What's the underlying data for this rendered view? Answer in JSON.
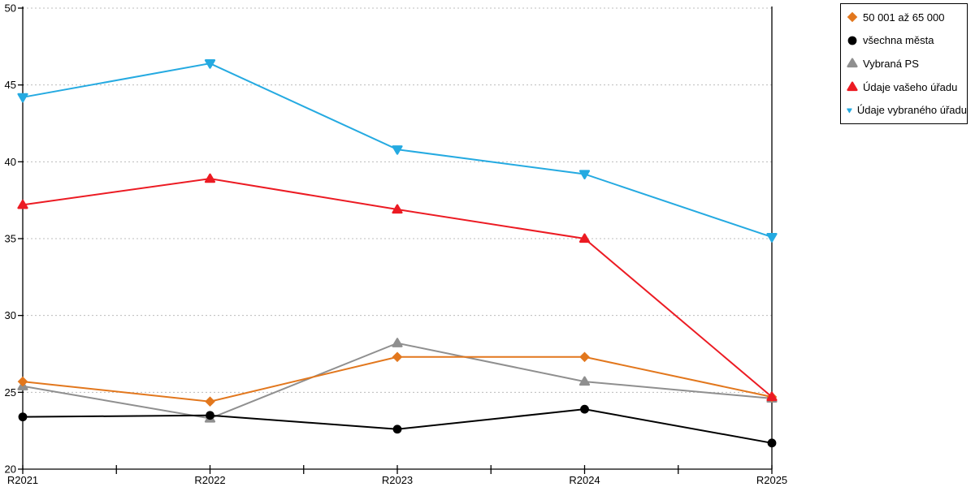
{
  "chart_data": {
    "type": "line",
    "categories": [
      "R2021",
      "R2022",
      "R2023",
      "R2024",
      "R2025"
    ],
    "series": [
      {
        "name": "50 001 až 65 000",
        "marker": "diamond-icon",
        "color": "#E2771D",
        "values": [
          25.7,
          24.4,
          27.3,
          27.3,
          24.7
        ]
      },
      {
        "name": "všechna města",
        "marker": "circle-icon",
        "color": "#000000",
        "values": [
          23.4,
          23.5,
          22.6,
          23.9,
          21.7
        ]
      },
      {
        "name": "Vybraná PS",
        "marker": "triangle-up-icon",
        "color": "#8F8F8F",
        "values": [
          25.4,
          23.3,
          28.2,
          25.7,
          24.6
        ]
      },
      {
        "name": "Údaje vašeho úřadu",
        "marker": "triangle-up-icon",
        "color": "#EC1B23",
        "values": [
          37.2,
          38.9,
          36.9,
          35.0,
          24.7
        ]
      },
      {
        "name": "Údaje vybraného úřadu",
        "marker": "triangle-down-icon",
        "color": "#25AAE1",
        "values": [
          44.2,
          46.4,
          40.8,
          39.2,
          35.1
        ]
      }
    ],
    "ylim": [
      20,
      50
    ],
    "ytick_step": 5,
    "yticks": [
      "20",
      "25",
      "30",
      "35",
      "40",
      "45",
      "50"
    ],
    "grid": "horizontal-dotted",
    "gridline_color": "#bcbcbc",
    "axis_color": "#000000",
    "legend_position": "outside-top-right"
  }
}
